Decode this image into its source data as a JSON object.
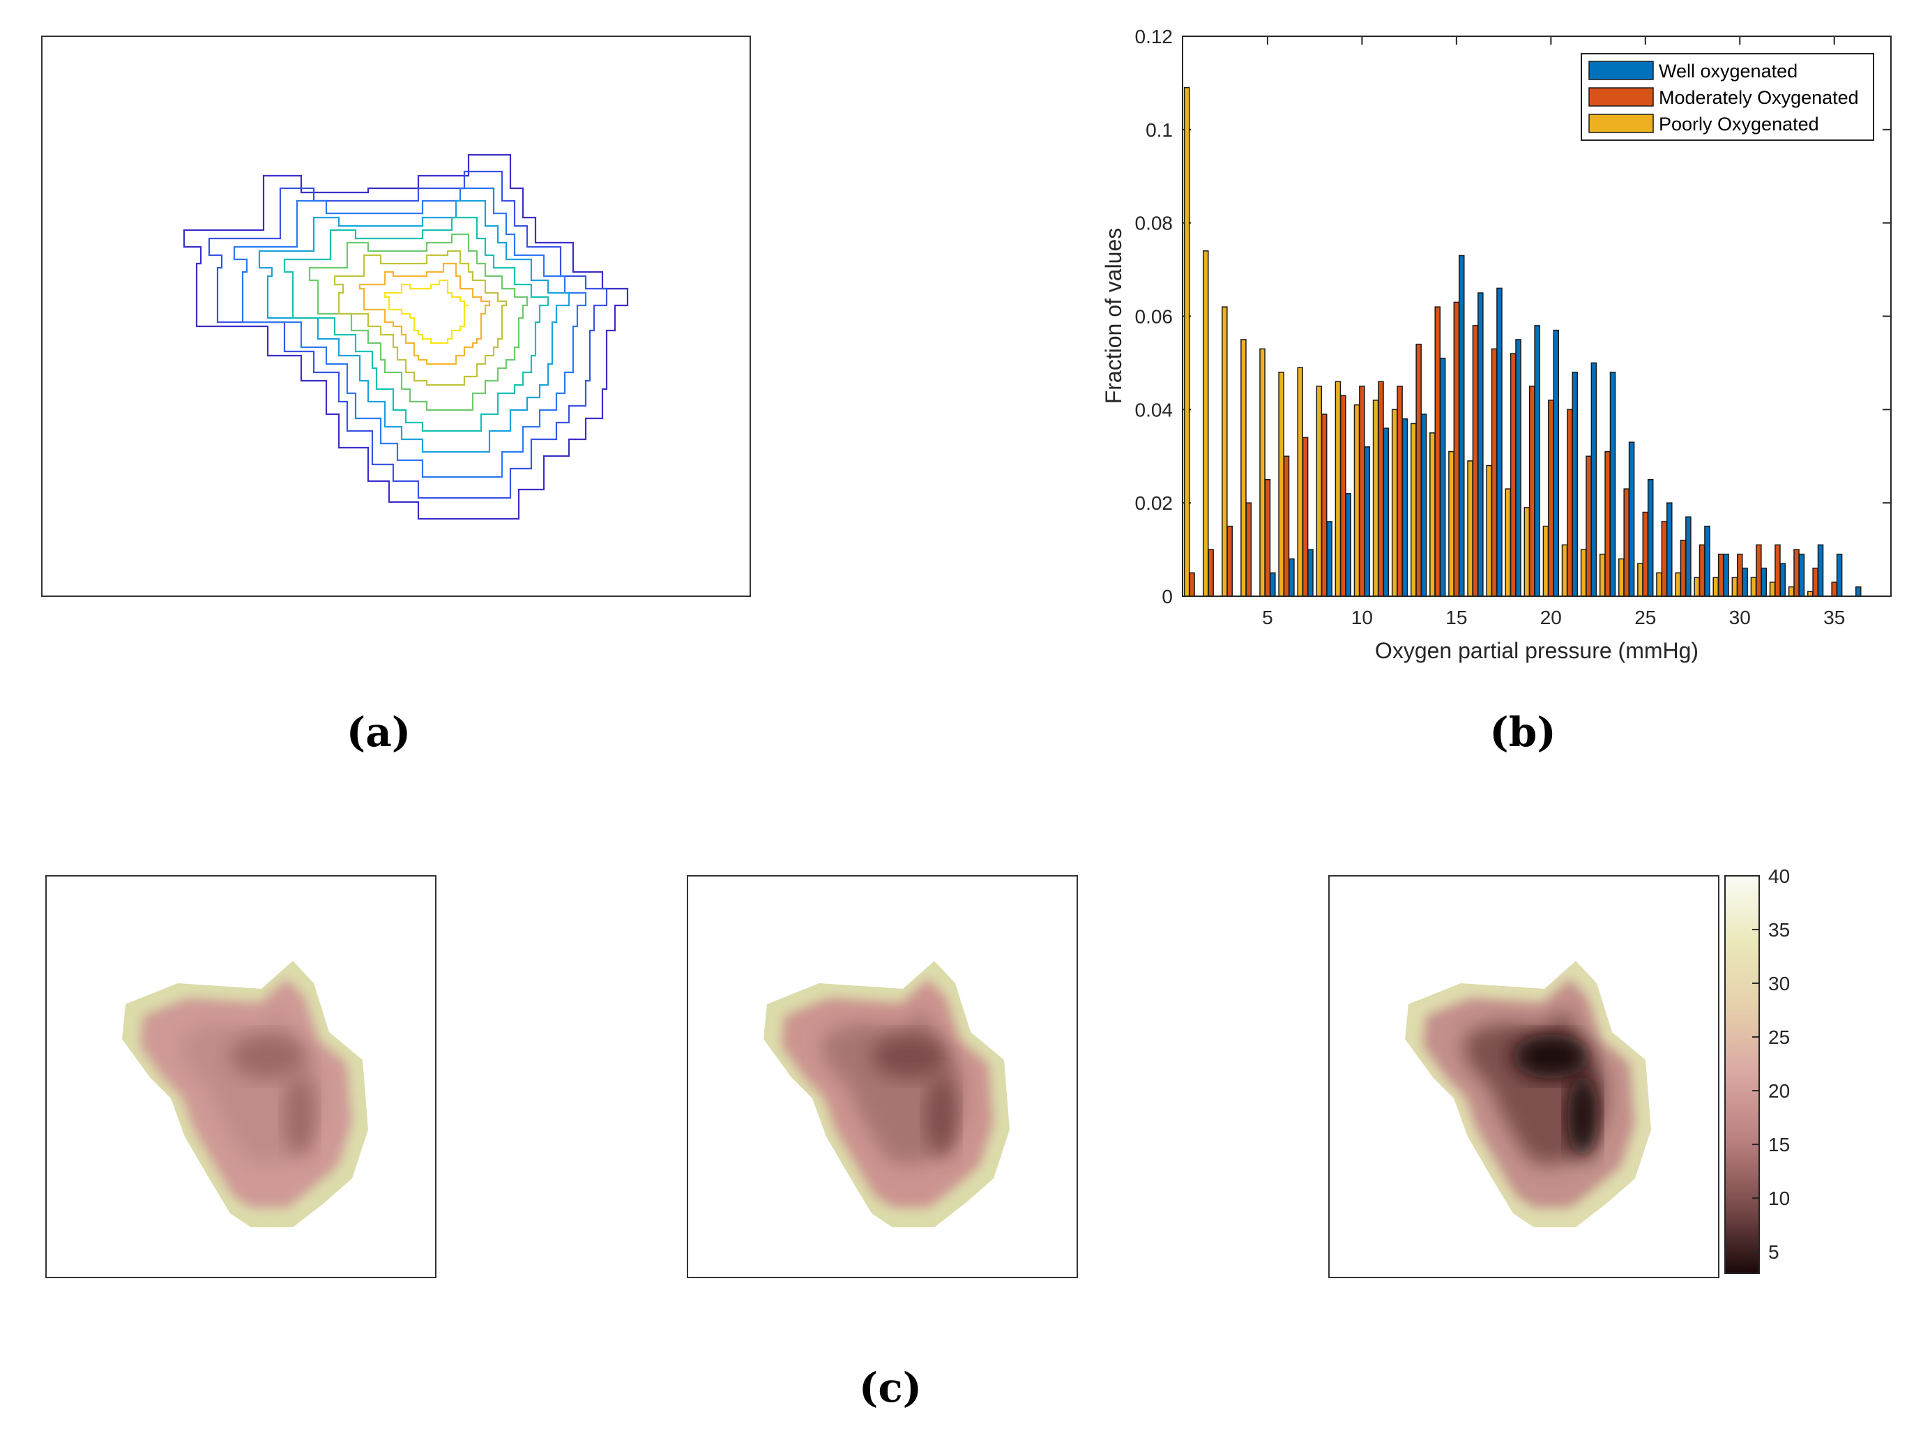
{
  "panels": {
    "a_label": "(a)",
    "b_label": "(b)",
    "c_label": "(c)"
  },
  "contour": {
    "colors": [
      "#3b2ec8",
      "#3a52e4",
      "#2c78f4",
      "#1aa2df",
      "#17c1b1",
      "#6ec96e",
      "#c1c33a",
      "#f6b430",
      "#f8e51f"
    ]
  },
  "chart_data": {
    "type": "bar",
    "x": [
      1,
      2,
      3,
      4,
      5,
      6,
      7,
      8,
      9,
      10,
      11,
      12,
      13,
      14,
      15,
      16,
      17,
      18,
      19,
      20,
      21,
      22,
      23,
      24,
      25,
      26,
      27,
      28,
      29,
      30,
      31,
      32,
      33,
      34,
      35,
      36
    ],
    "xticks": [
      5,
      10,
      15,
      20,
      25,
      30,
      35
    ],
    "yticks": [
      0,
      0.02,
      0.04,
      0.06,
      0.08,
      0.1,
      0.12
    ],
    "ytick_labels": [
      "0",
      "0.02",
      "0.04",
      "0.06",
      "0.08",
      "0.1",
      "0.12"
    ],
    "xlim": [
      0.5,
      38
    ],
    "ylim": [
      0,
      0.12
    ],
    "xlabel": "Oxygen partial pressure (mmHg)",
    "ylabel": "Fraction of values",
    "legend_position": "top-right",
    "series": [
      {
        "name": "Well oxygenated",
        "color": "#0072bd",
        "values": [
          0,
          0,
          0,
          0,
          0.005,
          0.008,
          0.01,
          0.016,
          0.022,
          0.032,
          0.036,
          0.038,
          0.039,
          0.051,
          0.073,
          0.065,
          0.066,
          0.055,
          0.058,
          0.057,
          0.048,
          0.05,
          0.048,
          0.033,
          0.025,
          0.02,
          0.017,
          0.015,
          0.009,
          0.006,
          0.006,
          0.007,
          0.009,
          0.011,
          0.009,
          0.002
        ]
      },
      {
        "name": "Moderately Oxygenated",
        "color": "#d95319",
        "values": [
          0.005,
          0.01,
          0.015,
          0.02,
          0.025,
          0.03,
          0.034,
          0.039,
          0.043,
          0.045,
          0.046,
          0.045,
          0.054,
          0.062,
          0.063,
          0.058,
          0.053,
          0.052,
          0.045,
          0.042,
          0.04,
          0.03,
          0.031,
          0.023,
          0.018,
          0.016,
          0.012,
          0.011,
          0.009,
          0.009,
          0.011,
          0.011,
          0.01,
          0.006,
          0.003,
          0
        ]
      },
      {
        "name": "Poorly Oxygenated",
        "color": "#edb120",
        "values": [
          0.109,
          0.074,
          0.062,
          0.055,
          0.053,
          0.048,
          0.049,
          0.045,
          0.046,
          0.041,
          0.042,
          0.04,
          0.037,
          0.035,
          0.031,
          0.029,
          0.028,
          0.023,
          0.019,
          0.015,
          0.011,
          0.01,
          0.009,
          0.008,
          0.007,
          0.005,
          0.005,
          0.004,
          0.004,
          0.004,
          0.004,
          0.003,
          0.002,
          0.001,
          0,
          0
        ]
      }
    ]
  },
  "heatmaps": {
    "colorbar_ticks": [
      5,
      10,
      15,
      20,
      25,
      30,
      35,
      40
    ],
    "colorbar_range": [
      3,
      40
    ],
    "colorbar_stops": [
      "#1a0808",
      "#7a4a4a",
      "#b9807f",
      "#d9a7a2",
      "#e6cfab",
      "#ebe8ba",
      "#fbfbf5"
    ],
    "panel_fills": [
      {
        "edge": "#dcdcab",
        "mid": "#cf9a96",
        "core": "#c08c8a",
        "center": "#9c6868"
      },
      {
        "edge": "#dcdcab",
        "mid": "#cc9490",
        "core": "#a67472",
        "center": "#7d4c4b"
      },
      {
        "edge": "#dfdcae",
        "mid": "#c3908b",
        "core": "#7d4f4d",
        "center": "#1c0b0a"
      }
    ]
  }
}
